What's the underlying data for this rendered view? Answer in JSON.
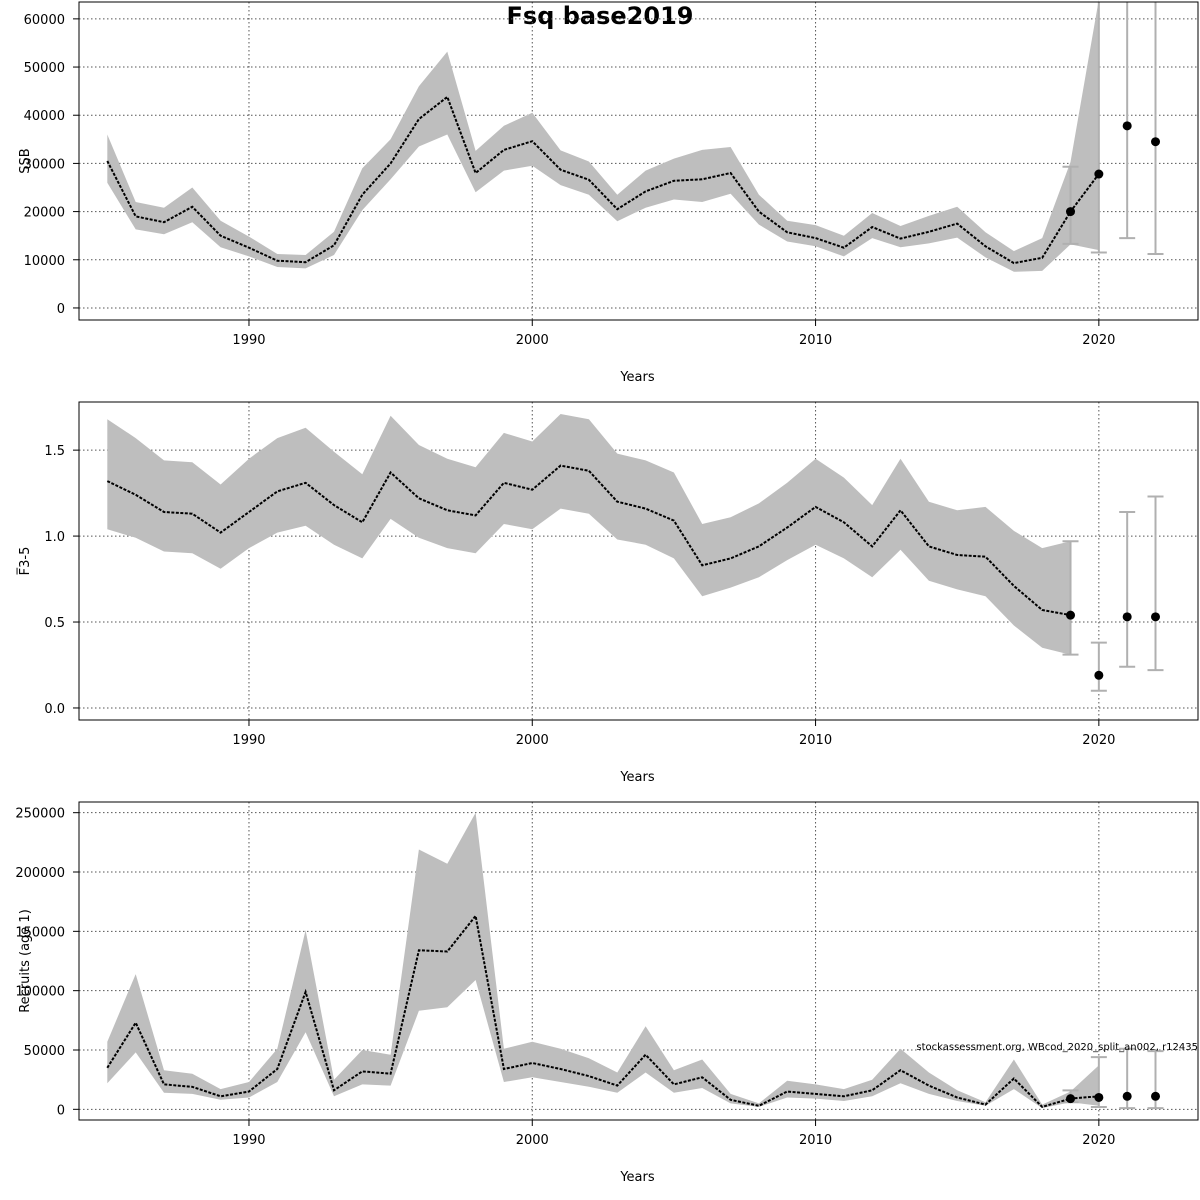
{
  "title": "Fsq base2019",
  "note": "stockassessment.org, WBcod_2020_split_an002, r12435",
  "colors": {
    "band": "#bebebe",
    "line": "#000000",
    "grid": "#555555",
    "whisker": "#b0b0b0",
    "point": "#000000"
  },
  "chart_data": [
    {
      "type": "line",
      "xlabel": "Years",
      "ylabel": "SSB",
      "xlim": [
        1984,
        2023.5
      ],
      "ylim": [
        -2500,
        63500
      ],
      "xticks": [
        1990,
        2000,
        2010,
        2020
      ],
      "yticks": [
        0,
        10000,
        20000,
        30000,
        40000,
        50000,
        60000
      ],
      "grid": true,
      "years": [
        1985,
        1986,
        1987,
        1988,
        1989,
        1990,
        1991,
        1992,
        1993,
        1994,
        1995,
        1996,
        1997,
        1998,
        1999,
        2000,
        2001,
        2002,
        2003,
        2004,
        2005,
        2006,
        2007,
        2008,
        2009,
        2010,
        2011,
        2012,
        2013,
        2014,
        2015,
        2016,
        2017,
        2018,
        2019,
        2020
      ],
      "estimate": [
        30500,
        19000,
        17800,
        21000,
        15000,
        12500,
        9800,
        9500,
        13000,
        23500,
        30000,
        39200,
        43800,
        28000,
        32800,
        34600,
        28700,
        26600,
        20500,
        24200,
        26400,
        26700,
        28000,
        20000,
        15700,
        14500,
        12500,
        16800,
        14400,
        15800,
        17500,
        12800,
        9300,
        10400,
        20000,
        27800
      ],
      "lower": [
        26000,
        16300,
        15300,
        17800,
        12600,
        10700,
        8500,
        8200,
        11000,
        20300,
        26700,
        33500,
        36000,
        24000,
        28500,
        29500,
        25500,
        23500,
        18000,
        20800,
        22500,
        22000,
        23700,
        17300,
        13800,
        12800,
        10700,
        14500,
        12600,
        13400,
        14600,
        10500,
        7500,
        7700,
        13200,
        12000
      ],
      "upper": [
        36000,
        22000,
        20800,
        25000,
        18100,
        14800,
        11200,
        11000,
        15800,
        29000,
        35000,
        46000,
        53200,
        32600,
        37800,
        40500,
        32700,
        30400,
        23500,
        28500,
        31000,
        32800,
        33400,
        23500,
        18100,
        17200,
        15000,
        19700,
        17000,
        19100,
        21000,
        15700,
        11800,
        14500,
        30300,
        64000
      ],
      "projections": [
        {
          "year": 2019,
          "value": 20000,
          "lower": 13300,
          "upper": 29300
        },
        {
          "year": 2020,
          "value": 27800,
          "lower": 11500,
          "upper": 64000
        },
        {
          "year": 2021,
          "value": 37800,
          "lower": 14500,
          "upper": 64000
        },
        {
          "year": 2022,
          "value": 34500,
          "lower": 11200,
          "upper": 64000
        }
      ]
    },
    {
      "type": "line",
      "xlabel": "Years",
      "ylabel": "F̅3-5",
      "xlim": [
        1984,
        2023.5
      ],
      "ylim": [
        -0.07,
        1.78
      ],
      "xticks": [
        1990,
        2000,
        2010,
        2020
      ],
      "yticks": [
        "0.0",
        "0.5",
        "1.0",
        "1.5"
      ],
      "grid": true,
      "years": [
        1985,
        1986,
        1987,
        1988,
        1989,
        1990,
        1991,
        1992,
        1993,
        1994,
        1995,
        1996,
        1997,
        1998,
        1999,
        2000,
        2001,
        2002,
        2003,
        2004,
        2005,
        2006,
        2007,
        2008,
        2009,
        2010,
        2011,
        2012,
        2013,
        2014,
        2015,
        2016,
        2017,
        2018,
        2019
      ],
      "estimate": [
        1.32,
        1.24,
        1.14,
        1.13,
        1.02,
        1.14,
        1.26,
        1.31,
        1.18,
        1.08,
        1.37,
        1.22,
        1.15,
        1.12,
        1.31,
        1.27,
        1.41,
        1.38,
        1.2,
        1.16,
        1.09,
        0.83,
        0.87,
        0.94,
        1.05,
        1.17,
        1.08,
        0.94,
        1.15,
        0.94,
        0.89,
        0.88,
        0.71,
        0.57,
        0.54
      ],
      "lower": [
        1.04,
        0.99,
        0.91,
        0.9,
        0.81,
        0.93,
        1.02,
        1.06,
        0.95,
        0.87,
        1.1,
        0.99,
        0.93,
        0.9,
        1.07,
        1.04,
        1.16,
        1.13,
        0.98,
        0.95,
        0.87,
        0.65,
        0.7,
        0.76,
        0.86,
        0.95,
        0.87,
        0.76,
        0.92,
        0.74,
        0.69,
        0.65,
        0.48,
        0.35,
        0.31
      ],
      "upper": [
        1.68,
        1.57,
        1.44,
        1.43,
        1.3,
        1.45,
        1.57,
        1.63,
        1.49,
        1.36,
        1.7,
        1.53,
        1.45,
        1.4,
        1.6,
        1.55,
        1.71,
        1.68,
        1.48,
        1.44,
        1.37,
        1.07,
        1.11,
        1.19,
        1.31,
        1.45,
        1.34,
        1.18,
        1.45,
        1.2,
        1.15,
        1.17,
        1.03,
        0.93,
        0.97
      ],
      "projections": [
        {
          "year": 2019,
          "value": 0.54,
          "lower": 0.31,
          "upper": 0.97
        },
        {
          "year": 2020,
          "value": 0.19,
          "lower": 0.1,
          "upper": 0.38
        },
        {
          "year": 2021,
          "value": 0.53,
          "lower": 0.24,
          "upper": 1.14
        },
        {
          "year": 2022,
          "value": 0.53,
          "lower": 0.22,
          "upper": 1.23
        }
      ]
    },
    {
      "type": "line",
      "xlabel": "Years",
      "ylabel": "Recruits (age 1)",
      "xlim": [
        1984,
        2023.5
      ],
      "ylim": [
        -9000,
        259000
      ],
      "xticks": [
        1990,
        2000,
        2010,
        2020
      ],
      "yticks": [
        0,
        50000,
        100000,
        150000,
        200000,
        250000
      ],
      "grid": true,
      "years": [
        1985,
        1986,
        1987,
        1988,
        1989,
        1990,
        1991,
        1992,
        1993,
        1994,
        1995,
        1996,
        1997,
        1998,
        1999,
        2000,
        2001,
        2002,
        2003,
        2004,
        2005,
        2006,
        2007,
        2008,
        2009,
        2010,
        2011,
        2012,
        2013,
        2014,
        2015,
        2016,
        2017,
        2018,
        2019,
        2020
      ],
      "estimate": [
        35000,
        73000,
        21000,
        19000,
        11000,
        15000,
        34000,
        99000,
        16000,
        32000,
        30000,
        134000,
        133000,
        163000,
        34000,
        39000,
        34000,
        28000,
        20000,
        46000,
        21000,
        27000,
        8000,
        3000,
        15000,
        13000,
        11000,
        16000,
        33000,
        20000,
        10000,
        4000,
        26000,
        2000,
        9000,
        11000
      ],
      "lower": [
        22000,
        48000,
        14000,
        13000,
        8000,
        10000,
        23000,
        65000,
        11000,
        21000,
        20000,
        83000,
        86000,
        109000,
        23000,
        27000,
        23000,
        19000,
        14000,
        31000,
        14000,
        18000,
        5000,
        2000,
        10000,
        9000,
        7000,
        11000,
        22000,
        13000,
        7000,
        3000,
        17000,
        1000,
        6000,
        3000
      ],
      "upper": [
        57000,
        114000,
        33000,
        30000,
        17000,
        23000,
        51000,
        151000,
        25000,
        50000,
        46000,
        219000,
        207000,
        250000,
        51000,
        57000,
        51000,
        43000,
        31000,
        70000,
        33000,
        42000,
        13000,
        5000,
        24000,
        21000,
        17000,
        25000,
        51000,
        31000,
        16000,
        6000,
        42000,
        4000,
        15000,
        37000
      ],
      "projections": [
        {
          "year": 2019,
          "value": 9000,
          "lower": 6000,
          "upper": 16000
        },
        {
          "year": 2020,
          "value": 10000,
          "lower": 2000,
          "upper": 44000
        },
        {
          "year": 2021,
          "value": 11000,
          "lower": 1000,
          "upper": 51000
        },
        {
          "year": 2022,
          "value": 11000,
          "lower": 1000,
          "upper": 49000
        }
      ]
    }
  ]
}
